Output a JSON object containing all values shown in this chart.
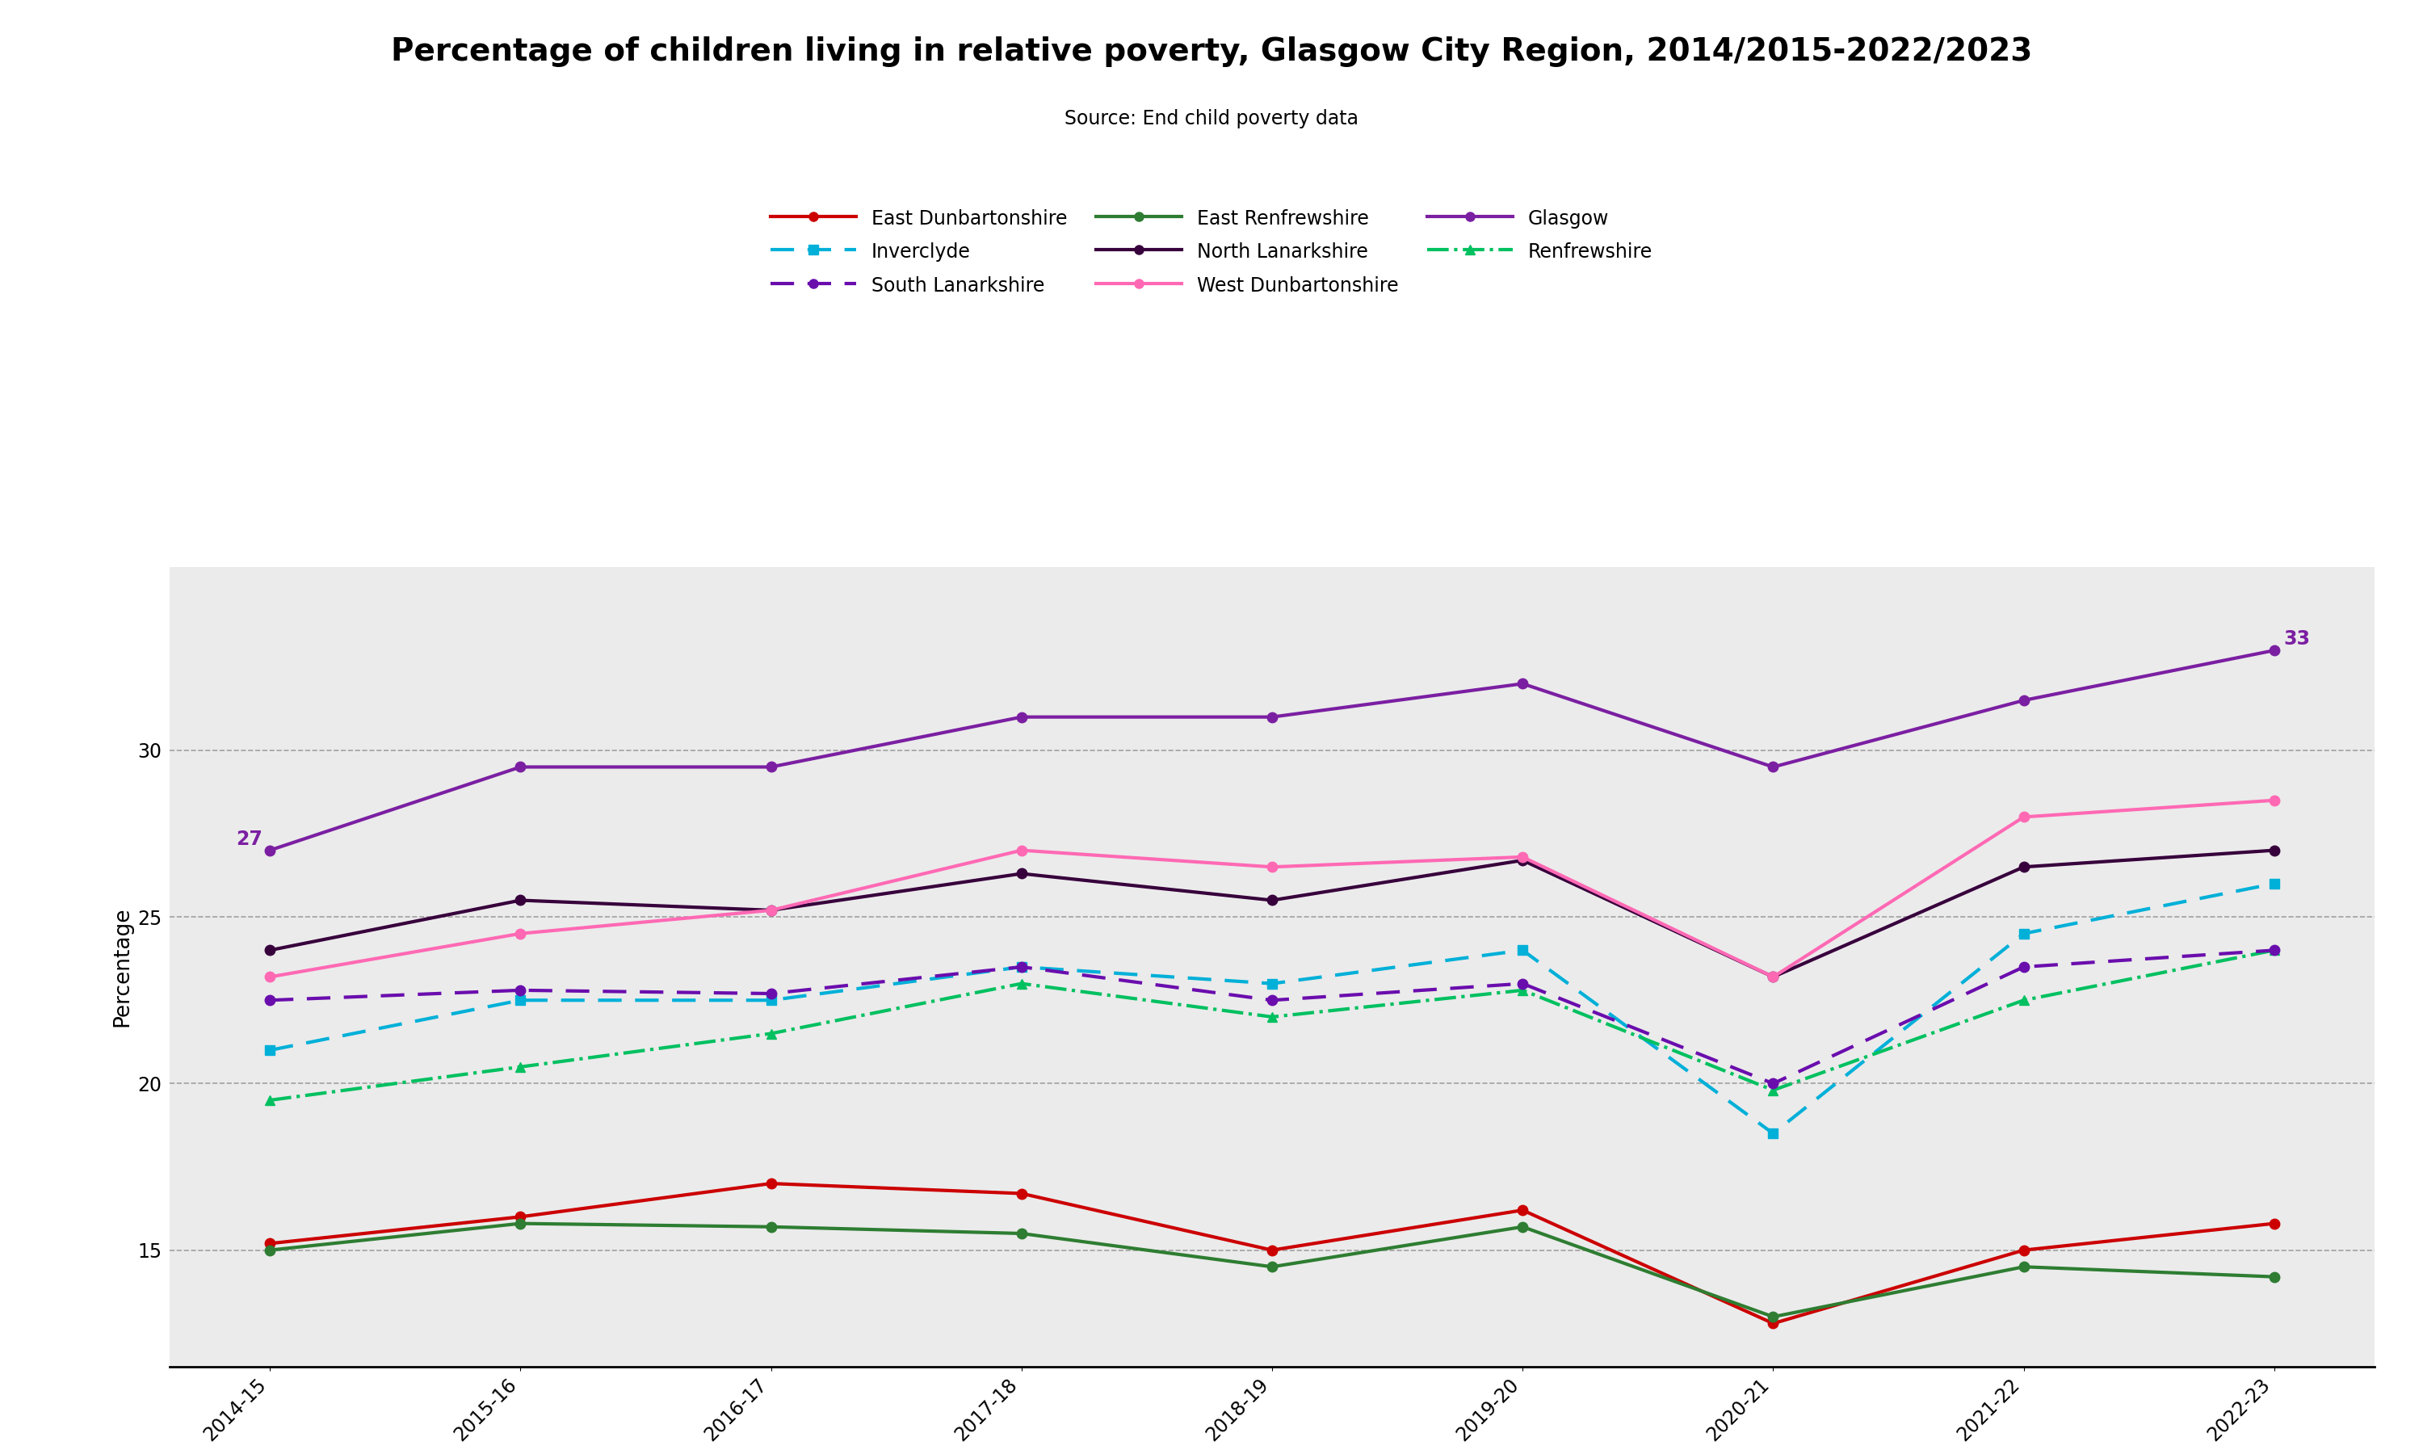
{
  "title": "Percentage of children living in relative poverty, Glasgow City Region, 2014/2015-2022/2023",
  "source": "Source: End child poverty data",
  "ylabel": "Percentage",
  "x_labels": [
    "2014-15",
    "2015-16",
    "2016-17",
    "2017-18",
    "2018-19",
    "2019-20",
    "2020-21",
    "2021-22",
    "2022-23"
  ],
  "series": [
    {
      "name": "East Dunbartonshire",
      "color": "#cc0000",
      "style": "solid",
      "marker": "o",
      "values": [
        15.2,
        16.0,
        17.0,
        16.7,
        15.0,
        16.2,
        12.8,
        15.0,
        15.8
      ]
    },
    {
      "name": "East Renfrewshire",
      "color": "#2e7d32",
      "style": "solid",
      "marker": "o",
      "values": [
        15.0,
        15.8,
        15.7,
        15.5,
        14.5,
        15.7,
        13.0,
        14.5,
        14.2
      ]
    },
    {
      "name": "Glasgow",
      "color": "#7b1fa2",
      "style": "solid",
      "marker": "o",
      "values": [
        27.0,
        29.5,
        29.5,
        31.0,
        31.0,
        32.0,
        29.5,
        31.5,
        33.0
      ]
    },
    {
      "name": "Inverclyde",
      "color": "#00b0d8",
      "style": "dashed",
      "marker": "s",
      "values": [
        21.0,
        22.5,
        22.5,
        23.5,
        23.0,
        24.0,
        18.5,
        24.5,
        26.0
      ]
    },
    {
      "name": "North Lanarkshire",
      "color": "#37003c",
      "style": "solid",
      "marker": "o",
      "values": [
        24.0,
        25.5,
        25.2,
        26.3,
        25.5,
        26.7,
        23.2,
        26.5,
        27.0
      ]
    },
    {
      "name": "Renfrewshire",
      "color": "#00c060",
      "style": "dashdot",
      "marker": "^",
      "values": [
        19.5,
        20.5,
        21.5,
        23.0,
        22.0,
        22.8,
        19.8,
        22.5,
        24.0
      ]
    },
    {
      "name": "South Lanarkshire",
      "color": "#6a0dad",
      "style": "dashed",
      "marker": "o",
      "values": [
        22.5,
        22.8,
        22.7,
        23.5,
        22.5,
        23.0,
        20.0,
        23.5,
        24.0
      ]
    },
    {
      "name": "West Dunbartonshire",
      "color": "#ff69b4",
      "style": "solid",
      "marker": "o",
      "values": [
        23.2,
        24.5,
        25.2,
        27.0,
        26.5,
        26.8,
        23.2,
        28.0,
        28.5
      ]
    }
  ],
  "ylim": [
    11.5,
    35.5
  ],
  "yticks": [
    15,
    20,
    25,
    30
  ],
  "annotation_start": {
    "text": "27",
    "xi": 0,
    "y": 27.0
  },
  "annotation_end": {
    "text": "33",
    "xi": 8,
    "y": 33.0
  },
  "background_color": "#ebebeb",
  "plot_area_color": "#e8e8e8",
  "title_fontsize": 28,
  "source_fontsize": 17,
  "ylabel_fontsize": 19,
  "tick_fontsize": 17,
  "legend_fontsize": 17,
  "linewidth": 3.0,
  "markersize": 9
}
